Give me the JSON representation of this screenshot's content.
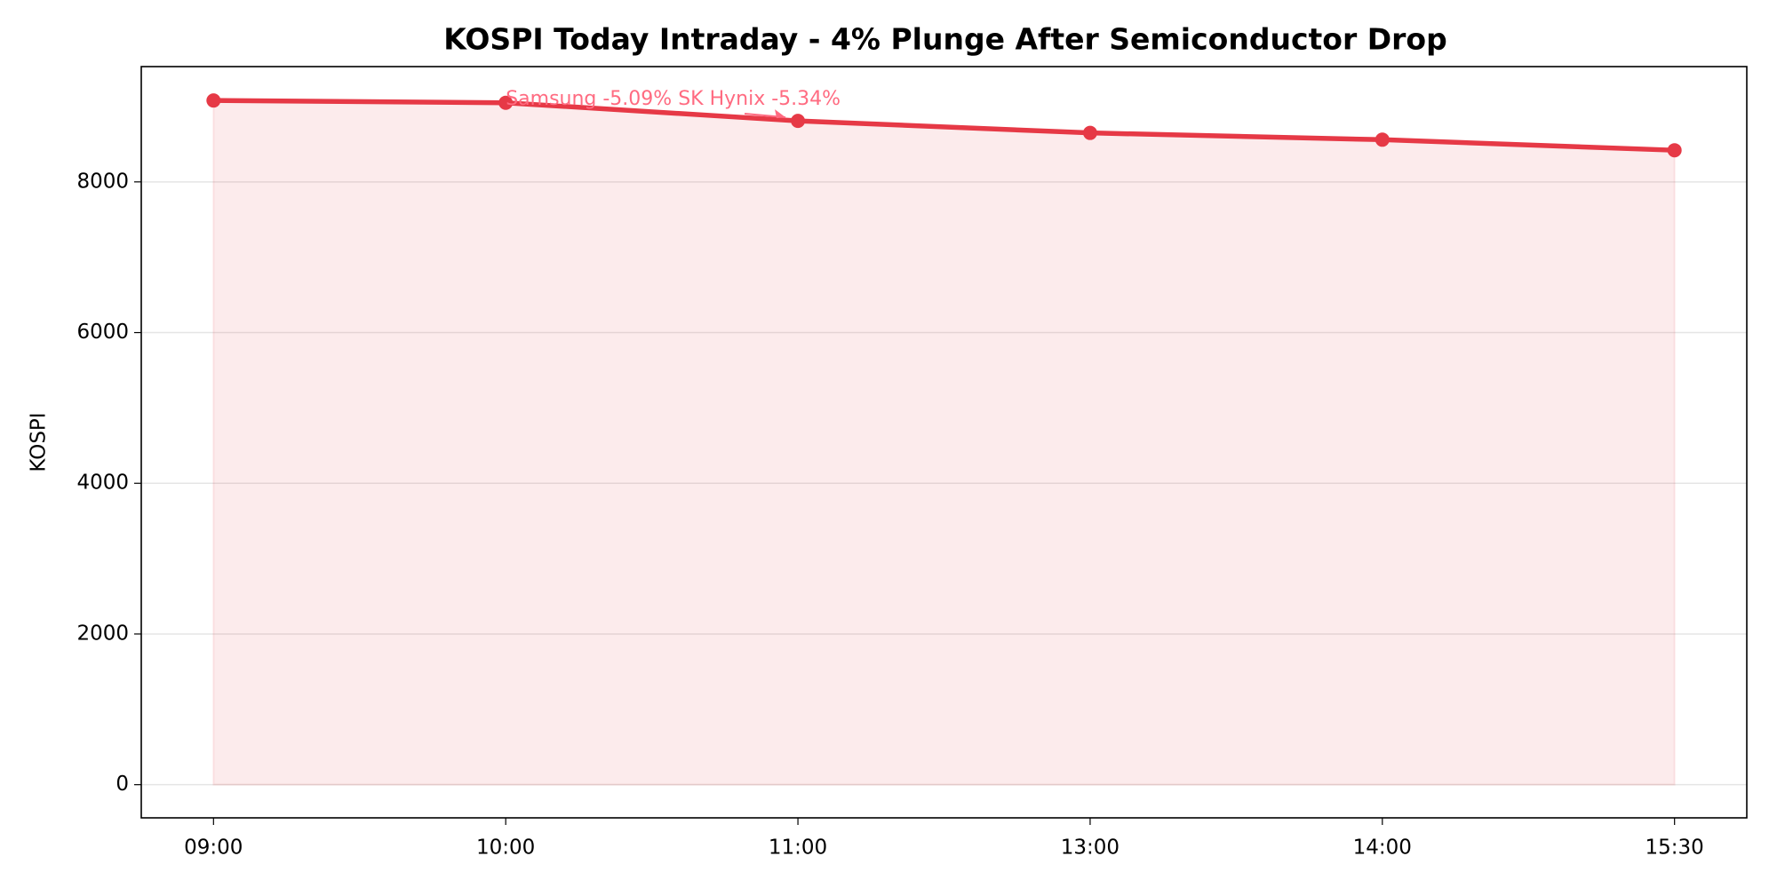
{
  "chart_data": {
    "type": "area",
    "title": "KOSPI Today Intraday - 4% Plunge After Semiconductor Drop",
    "y_label": "KOSPI",
    "categories": [
      "09:00",
      "10:00",
      "11:00",
      "13:00",
      "14:00",
      "15:30"
    ],
    "series": [
      {
        "name": "KOSPI",
        "color": "#e63946",
        "values": [
          9080,
          9050,
          8810,
          8650,
          8560,
          8420
        ]
      }
    ],
    "ylim": [
      -440,
      9530
    ],
    "yticks": [
      0,
      2000,
      4000,
      6000,
      8000
    ],
    "grid": true,
    "annotations": [
      {
        "text": "Samsung -5.09% SK Hynix -5.34%",
        "target": "11:00",
        "color": "#ff6b81"
      }
    ]
  }
}
